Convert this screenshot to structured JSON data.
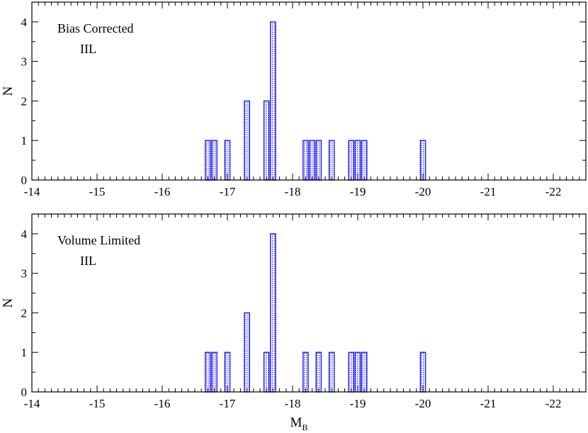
{
  "colors": {
    "bar_edge": "#1a1aff",
    "bar_fill": "#bcbcf0",
    "axis": "#000000",
    "background": "#ffffff"
  },
  "chart_data": [
    {
      "type": "bar",
      "annotation_lines": [
        "Bias Corrected",
        "IIL"
      ],
      "xlabel": "",
      "ylabel": "N",
      "xlim": [
        -14,
        -22.5
      ],
      "x_reversed": true,
      "ylim": [
        0,
        4.5
      ],
      "xticks": [
        -14,
        -15,
        -16,
        -17,
        -18,
        -19,
        -20,
        -21,
        -22
      ],
      "yticks": [
        0,
        1,
        2,
        3,
        4
      ],
      "bin_width": 0.1,
      "bars": [
        {
          "x": -16.7,
          "n": 1
        },
        {
          "x": -16.8,
          "n": 1
        },
        {
          "x": -17.0,
          "n": 1
        },
        {
          "x": -17.3,
          "n": 2
        },
        {
          "x": -17.6,
          "n": 2
        },
        {
          "x": -17.7,
          "n": 4
        },
        {
          "x": -18.2,
          "n": 1
        },
        {
          "x": -18.3,
          "n": 1
        },
        {
          "x": -18.4,
          "n": 1
        },
        {
          "x": -18.6,
          "n": 1
        },
        {
          "x": -18.9,
          "n": 1
        },
        {
          "x": -19.0,
          "n": 1
        },
        {
          "x": -19.1,
          "n": 1
        },
        {
          "x": -20.0,
          "n": 1
        }
      ]
    },
    {
      "type": "bar",
      "annotation_lines": [
        "Volume Limited",
        "IIL"
      ],
      "xlabel": "M",
      "xlabel_sub": "B",
      "ylabel": "N",
      "xlim": [
        -14,
        -22.5
      ],
      "x_reversed": true,
      "ylim": [
        0,
        4.5
      ],
      "xticks": [
        -14,
        -15,
        -16,
        -17,
        -18,
        -19,
        -20,
        -21,
        -22
      ],
      "yticks": [
        0,
        1,
        2,
        3,
        4
      ],
      "bin_width": 0.1,
      "bars": [
        {
          "x": -16.7,
          "n": 1
        },
        {
          "x": -16.8,
          "n": 1
        },
        {
          "x": -17.0,
          "n": 1
        },
        {
          "x": -17.3,
          "n": 2
        },
        {
          "x": -17.6,
          "n": 1
        },
        {
          "x": -17.7,
          "n": 4
        },
        {
          "x": -18.2,
          "n": 1
        },
        {
          "x": -18.4,
          "n": 1
        },
        {
          "x": -18.6,
          "n": 1
        },
        {
          "x": -18.9,
          "n": 1
        },
        {
          "x": -19.0,
          "n": 1
        },
        {
          "x": -19.1,
          "n": 1
        },
        {
          "x": -20.0,
          "n": 1
        }
      ]
    }
  ]
}
